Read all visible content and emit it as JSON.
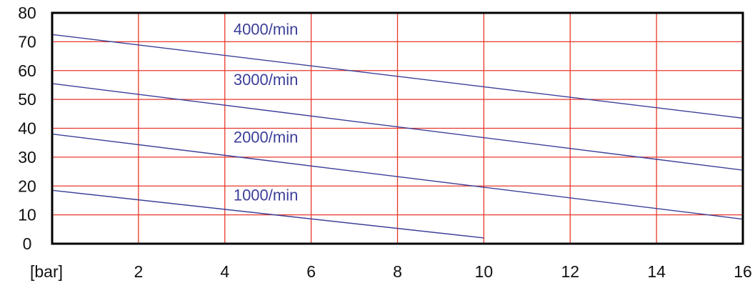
{
  "chart_data": {
    "type": "line",
    "xlabel": "[bar]",
    "ylabel": "",
    "xlim": [
      0,
      16
    ],
    "ylim": [
      0,
      80
    ],
    "x_ticks": [
      2,
      4,
      6,
      8,
      10,
      12,
      14,
      16
    ],
    "y_ticks": [
      0,
      10,
      20,
      30,
      40,
      50,
      60,
      70,
      80
    ],
    "grid": true,
    "colors": {
      "grid": "#e8392b",
      "series": "#3b3f98",
      "frame": "#000000"
    },
    "series": [
      {
        "name": "4000/min",
        "x": [
          0,
          16
        ],
        "y": [
          72.5,
          43.5
        ],
        "label_at": [
          4.2,
          72.5
        ]
      },
      {
        "name": "3000/min",
        "x": [
          0,
          16
        ],
        "y": [
          55.5,
          25.5
        ],
        "label_at": [
          4.2,
          55
        ]
      },
      {
        "name": "2000/min",
        "x": [
          0,
          16
        ],
        "y": [
          38,
          8.5
        ],
        "label_at": [
          4.2,
          35
        ]
      },
      {
        "name": "1000/min",
        "x": [
          0,
          10
        ],
        "y": [
          18.5,
          2
        ],
        "label_at": [
          4.2,
          15
        ]
      }
    ]
  }
}
